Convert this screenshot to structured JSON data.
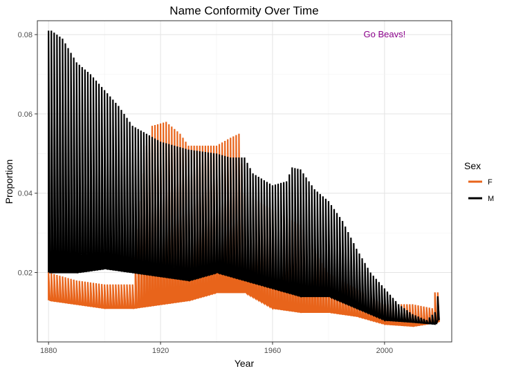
{
  "chart_data": {
    "type": "line",
    "title": "Name Conformity Over Time",
    "xlabel": "Year",
    "ylabel": "Proportion",
    "xlim": [
      1876,
      2024
    ],
    "ylim": [
      0.0025,
      0.0835
    ],
    "x_ticks": [
      1880,
      1920,
      1960,
      2000
    ],
    "y_ticks": [
      0.02,
      0.04,
      0.06,
      0.08
    ],
    "x_tick_labels": [
      "1880",
      "1920",
      "1960",
      "2000"
    ],
    "y_tick_labels": [
      "0.02",
      "0.04",
      "0.06",
      "0.08"
    ],
    "grid": true,
    "legend": {
      "title": "Sex",
      "position": "right"
    },
    "annotation": {
      "text": "Go Beavs!",
      "x": 2000,
      "y": 0.08,
      "color": "#8b008b"
    },
    "series": [
      {
        "name": "F",
        "color": "#e8641b",
        "upper_envelope": [
          [
            1880,
            0.02
          ],
          [
            1890,
            0.018
          ],
          [
            1900,
            0.017
          ],
          [
            1910,
            0.017
          ],
          [
            1915,
            0.052
          ],
          [
            1917,
            0.057
          ],
          [
            1922,
            0.058
          ],
          [
            1927,
            0.055
          ],
          [
            1930,
            0.052
          ],
          [
            1940,
            0.052
          ],
          [
            1945,
            0.054
          ],
          [
            1948,
            0.055
          ],
          [
            1950,
            0.04
          ],
          [
            1960,
            0.036
          ],
          [
            1970,
            0.032
          ],
          [
            1980,
            0.02
          ],
          [
            1990,
            0.016
          ],
          [
            2000,
            0.012
          ],
          [
            2010,
            0.012
          ],
          [
            2017,
            0.011
          ],
          [
            2018,
            0.015
          ],
          [
            2019,
            0.015
          ]
        ],
        "lower_envelope": [
          [
            1880,
            0.013
          ],
          [
            1890,
            0.012
          ],
          [
            1900,
            0.011
          ],
          [
            1910,
            0.011
          ],
          [
            1920,
            0.012
          ],
          [
            1930,
            0.013
          ],
          [
            1940,
            0.015
          ],
          [
            1950,
            0.015
          ],
          [
            1960,
            0.011
          ],
          [
            1970,
            0.01
          ],
          [
            1980,
            0.01
          ],
          [
            1990,
            0.009
          ],
          [
            2000,
            0.007
          ],
          [
            2010,
            0.0065
          ],
          [
            2019,
            0.0075
          ]
        ]
      },
      {
        "name": "M",
        "color": "#000000",
        "upper_envelope": [
          [
            1880,
            0.081
          ],
          [
            1881,
            0.081
          ],
          [
            1885,
            0.079
          ],
          [
            1890,
            0.073
          ],
          [
            1895,
            0.07
          ],
          [
            1900,
            0.066
          ],
          [
            1905,
            0.062
          ],
          [
            1910,
            0.057
          ],
          [
            1920,
            0.053
          ],
          [
            1930,
            0.051
          ],
          [
            1940,
            0.05
          ],
          [
            1945,
            0.049
          ],
          [
            1950,
            0.049
          ],
          [
            1953,
            0.045
          ],
          [
            1960,
            0.042
          ],
          [
            1965,
            0.043
          ],
          [
            1967,
            0.0465
          ],
          [
            1970,
            0.046
          ],
          [
            1975,
            0.041
          ],
          [
            1980,
            0.038
          ],
          [
            1985,
            0.033
          ],
          [
            1990,
            0.026
          ],
          [
            1995,
            0.02
          ],
          [
            2000,
            0.016
          ],
          [
            2005,
            0.012
          ],
          [
            2010,
            0.0095
          ],
          [
            2015,
            0.008
          ],
          [
            2018,
            0.01
          ],
          [
            2019,
            0.014
          ]
        ],
        "lower_envelope": [
          [
            1880,
            0.02
          ],
          [
            1890,
            0.02
          ],
          [
            1900,
            0.021
          ],
          [
            1910,
            0.02
          ],
          [
            1920,
            0.019
          ],
          [
            1930,
            0.018
          ],
          [
            1940,
            0.02
          ],
          [
            1950,
            0.018
          ],
          [
            1960,
            0.016
          ],
          [
            1970,
            0.014
          ],
          [
            1980,
            0.014
          ],
          [
            1990,
            0.011
          ],
          [
            2000,
            0.008
          ],
          [
            2010,
            0.0075
          ],
          [
            2018,
            0.007
          ],
          [
            2019,
            0.008
          ]
        ]
      }
    ]
  }
}
